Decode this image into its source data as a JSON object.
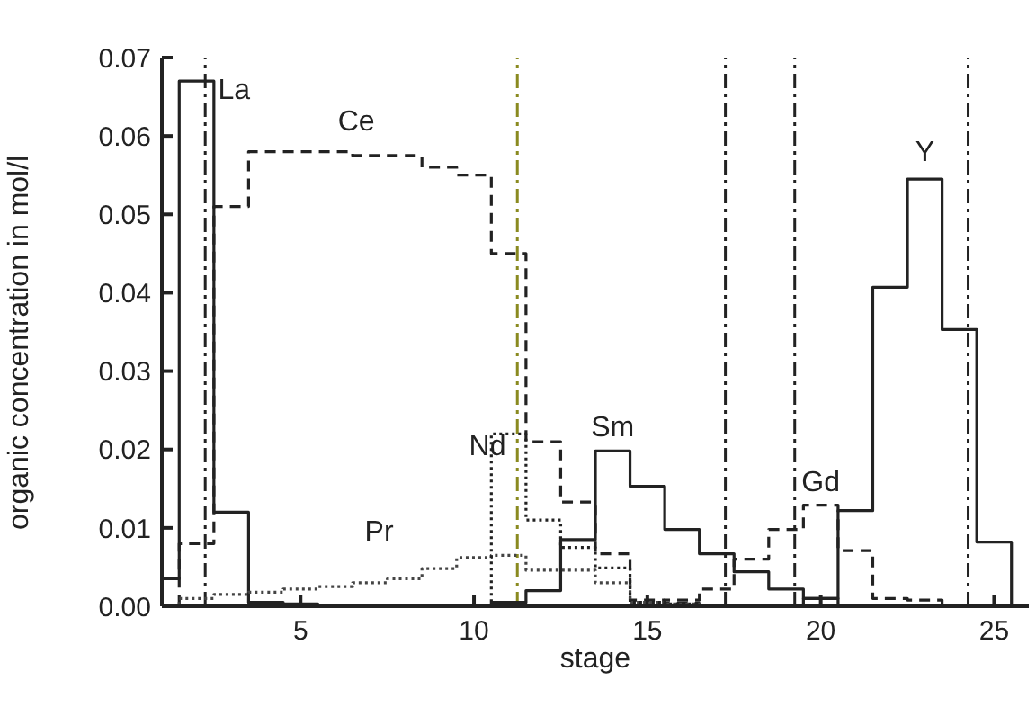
{
  "chart_data": {
    "type": "step",
    "xlabel": "stage",
    "ylabel": "organic concentration in mol/l",
    "x": [
      1,
      2,
      3,
      4,
      5,
      6,
      7,
      8,
      9,
      10,
      11,
      12,
      13,
      14,
      15,
      16,
      17,
      18,
      19,
      20,
      21,
      22,
      23,
      24,
      25,
      26
    ],
    "series": [
      {
        "name": "La",
        "color": "#222222",
        "line_style": "solid",
        "values": [
          0.0035,
          0.067,
          0.012,
          0.0005,
          0.0003,
          0,
          0,
          0,
          0,
          0,
          0,
          0,
          0,
          0,
          0,
          0,
          0,
          0,
          0,
          0,
          0,
          0,
          0,
          0,
          0,
          0
        ]
      },
      {
        "name": "Ce",
        "color": "#222222",
        "line_style": "dashed",
        "values": [
          0,
          0.008,
          0.051,
          0.058,
          0.058,
          0.058,
          0.0575,
          0.0575,
          0.056,
          0.055,
          0.045,
          0.021,
          0.0133,
          0.0067,
          0.0008,
          0.0004,
          0,
          0,
          0,
          0,
          0,
          0,
          0,
          0,
          0,
          0
        ]
      },
      {
        "name": "Pr",
        "color": "#444444",
        "line_style": "dotted",
        "values": [
          0,
          0.001,
          0.0015,
          0.0018,
          0.0022,
          0.0025,
          0.003,
          0.0035,
          0.0048,
          0.0062,
          0.0065,
          0.0046,
          0.0046,
          0.003,
          0.0005,
          0.0003,
          0,
          0,
          0,
          0,
          0,
          0,
          0,
          0,
          0,
          0
        ]
      },
      {
        "name": "Nd",
        "color": "#222222",
        "line_style": "dotted",
        "values": [
          0,
          0,
          0,
          0,
          0,
          0,
          0,
          0,
          0,
          0,
          0.022,
          0.011,
          0.0075,
          0.0049,
          0.0005,
          0.0003,
          0,
          0,
          0,
          0,
          0,
          0,
          0,
          0,
          0,
          0
        ]
      },
      {
        "name": "Sm",
        "color": "#222222",
        "line_style": "solid",
        "values": [
          0,
          0,
          0,
          0,
          0,
          0,
          0,
          0,
          0,
          0,
          0.0005,
          0.002,
          0.0085,
          0.0198,
          0.0153,
          0.0098,
          0.0067,
          0.0044,
          0.0022,
          0.001,
          0,
          0,
          0,
          0,
          0,
          0
        ]
      },
      {
        "name": "Gd",
        "color": "#222222",
        "line_style": "dashed",
        "values": [
          0,
          0,
          0,
          0,
          0,
          0,
          0,
          0,
          0,
          0,
          0,
          0,
          0,
          0,
          0,
          0.0008,
          0.0022,
          0.006,
          0.0098,
          0.0129,
          0.0071,
          0.001,
          0.0008,
          0,
          0,
          0
        ]
      },
      {
        "name": "Y",
        "color": "#222222",
        "line_style": "solid",
        "values": [
          0,
          0,
          0,
          0,
          0,
          0,
          0,
          0,
          0,
          0,
          0,
          0,
          0,
          0,
          0,
          0,
          0,
          0,
          0,
          0.001,
          0.0122,
          0.0407,
          0.0545,
          0.0353,
          0.0082,
          0
        ]
      }
    ],
    "xlim": [
      1,
      26
    ],
    "xticks": [
      5,
      10,
      15,
      20,
      25
    ],
    "ylim": [
      0,
      0.07
    ],
    "yticks": [
      {
        "value": 0,
        "label": "0.00"
      },
      0.01,
      0.02,
      0.03,
      0.04,
      0.05,
      0.06,
      0.07
    ],
    "ref_lines": [
      {
        "axis": "x",
        "value": 2.25,
        "color": "#222222"
      },
      {
        "axis": "x",
        "value": 11.25,
        "color": "#8a8a20"
      },
      {
        "axis": "x",
        "value": 17.25,
        "color": "#222222"
      },
      {
        "axis": "x",
        "value": 19.25,
        "color": "#222222"
      },
      {
        "axis": "x",
        "value": 24.25,
        "color": "#222222"
      }
    ]
  }
}
